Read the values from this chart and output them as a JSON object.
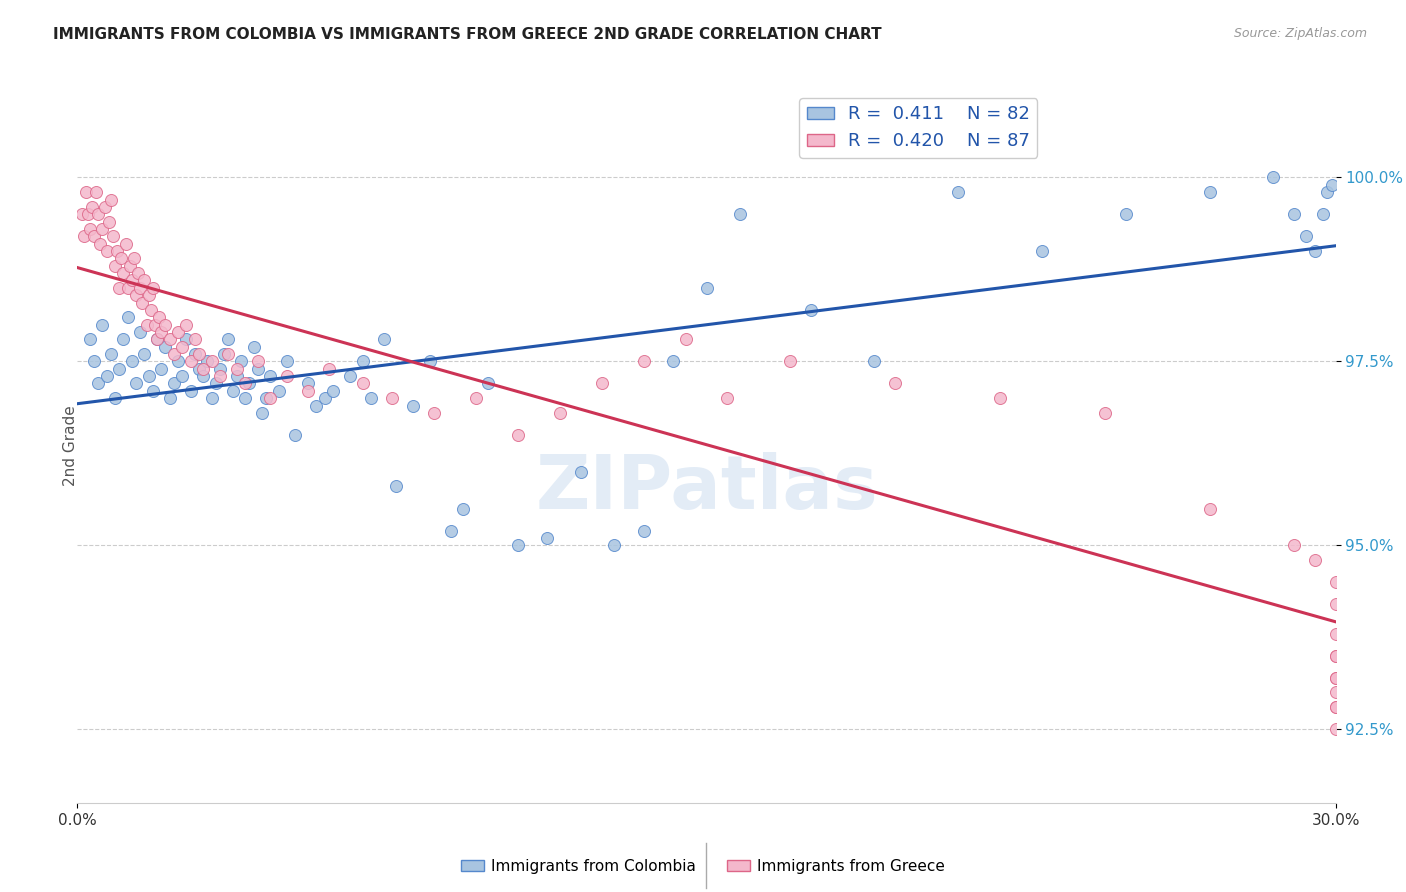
{
  "title": "IMMIGRANTS FROM COLOMBIA VS IMMIGRANTS FROM GREECE 2ND GRADE CORRELATION CHART",
  "source": "Source: ZipAtlas.com",
  "ylabel": "2nd Grade",
  "ytick_values": [
    92.5,
    95.0,
    97.5,
    100.0
  ],
  "xmin": 0.0,
  "xmax": 30.0,
  "ymin": 91.5,
  "ymax": 101.2,
  "legend_entries": [
    {
      "label": "Immigrants from Colombia",
      "R": "0.411",
      "N": "82"
    },
    {
      "label": "Immigrants from Greece",
      "R": "0.420",
      "N": "87"
    }
  ],
  "colombia_color": "#a8c4e0",
  "colombia_edge_color": "#5588cc",
  "greece_color": "#f4b8cc",
  "greece_edge_color": "#dd6688",
  "colombia_line_color": "#2255aa",
  "greece_line_color": "#cc3355",
  "background_color": "#ffffff",
  "grid_color": "#cccccc",
  "colombia_x": [
    0.3,
    0.4,
    0.5,
    0.6,
    0.7,
    0.8,
    0.9,
    1.0,
    1.1,
    1.2,
    1.3,
    1.4,
    1.5,
    1.6,
    1.7,
    1.8,
    1.9,
    2.0,
    2.1,
    2.2,
    2.3,
    2.4,
    2.5,
    2.6,
    2.7,
    2.8,
    2.9,
    3.0,
    3.1,
    3.2,
    3.3,
    3.4,
    3.5,
    3.6,
    3.7,
    3.8,
    3.9,
    4.0,
    4.1,
    4.2,
    4.3,
    4.4,
    4.5,
    4.6,
    4.8,
    5.0,
    5.2,
    5.5,
    5.7,
    5.9,
    6.1,
    6.5,
    6.8,
    7.0,
    7.3,
    7.6,
    8.0,
    8.4,
    8.9,
    9.2,
    9.8,
    10.5,
    11.2,
    12.0,
    12.8,
    13.5,
    14.2,
    15.0,
    15.8,
    17.5,
    19.0,
    21.0,
    23.0,
    25.0,
    27.0,
    28.5,
    29.0,
    29.3,
    29.5,
    29.7,
    29.8,
    29.9
  ],
  "colombia_y": [
    97.8,
    97.5,
    97.2,
    98.0,
    97.3,
    97.6,
    97.0,
    97.4,
    97.8,
    98.1,
    97.5,
    97.2,
    97.9,
    97.6,
    97.3,
    97.1,
    97.8,
    97.4,
    97.7,
    97.0,
    97.2,
    97.5,
    97.3,
    97.8,
    97.1,
    97.6,
    97.4,
    97.3,
    97.5,
    97.0,
    97.2,
    97.4,
    97.6,
    97.8,
    97.1,
    97.3,
    97.5,
    97.0,
    97.2,
    97.7,
    97.4,
    96.8,
    97.0,
    97.3,
    97.1,
    97.5,
    96.5,
    97.2,
    96.9,
    97.0,
    97.1,
    97.3,
    97.5,
    97.0,
    97.8,
    95.8,
    96.9,
    97.5,
    95.2,
    95.5,
    97.2,
    95.0,
    95.1,
    96.0,
    95.0,
    95.2,
    97.5,
    98.5,
    99.5,
    98.2,
    97.5,
    99.8,
    99.0,
    99.5,
    99.8,
    100.0,
    99.5,
    99.2,
    99.0,
    99.5,
    99.8,
    99.9
  ],
  "greece_x": [
    0.1,
    0.15,
    0.2,
    0.25,
    0.3,
    0.35,
    0.4,
    0.45,
    0.5,
    0.55,
    0.6,
    0.65,
    0.7,
    0.75,
    0.8,
    0.85,
    0.9,
    0.95,
    1.0,
    1.05,
    1.1,
    1.15,
    1.2,
    1.25,
    1.3,
    1.35,
    1.4,
    1.45,
    1.5,
    1.55,
    1.6,
    1.65,
    1.7,
    1.75,
    1.8,
    1.85,
    1.9,
    1.95,
    2.0,
    2.1,
    2.2,
    2.3,
    2.4,
    2.5,
    2.6,
    2.7,
    2.8,
    2.9,
    3.0,
    3.2,
    3.4,
    3.6,
    3.8,
    4.0,
    4.3,
    4.6,
    5.0,
    5.5,
    6.0,
    6.8,
    7.5,
    8.5,
    9.5,
    10.5,
    11.5,
    12.5,
    13.5,
    14.5,
    15.5,
    17.0,
    19.5,
    22.0,
    24.5,
    27.0,
    29.0,
    29.5,
    30.0,
    30.0,
    30.0,
    30.0,
    30.0,
    30.0,
    30.0,
    30.0,
    30.0,
    30.0,
    30.0
  ],
  "greece_y": [
    99.5,
    99.2,
    99.8,
    99.5,
    99.3,
    99.6,
    99.2,
    99.8,
    99.5,
    99.1,
    99.3,
    99.6,
    99.0,
    99.4,
    99.7,
    99.2,
    98.8,
    99.0,
    98.5,
    98.9,
    98.7,
    99.1,
    98.5,
    98.8,
    98.6,
    98.9,
    98.4,
    98.7,
    98.5,
    98.3,
    98.6,
    98.0,
    98.4,
    98.2,
    98.5,
    98.0,
    97.8,
    98.1,
    97.9,
    98.0,
    97.8,
    97.6,
    97.9,
    97.7,
    98.0,
    97.5,
    97.8,
    97.6,
    97.4,
    97.5,
    97.3,
    97.6,
    97.4,
    97.2,
    97.5,
    97.0,
    97.3,
    97.1,
    97.4,
    97.2,
    97.0,
    96.8,
    97.0,
    96.5,
    96.8,
    97.2,
    97.5,
    97.8,
    97.0,
    97.5,
    97.2,
    97.0,
    96.8,
    95.5,
    95.0,
    94.8,
    94.5,
    94.2,
    93.8,
    93.5,
    93.2,
    92.8,
    92.5,
    93.0,
    92.8,
    93.5,
    93.2
  ]
}
